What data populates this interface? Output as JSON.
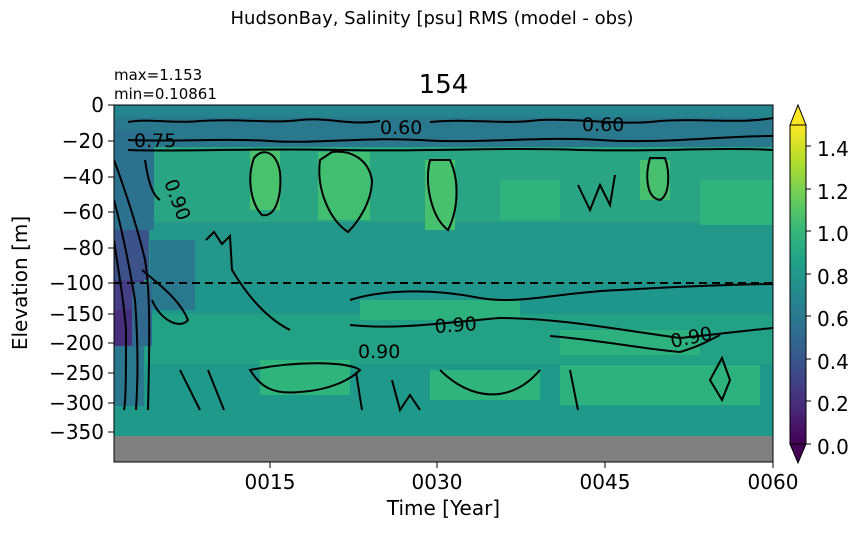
{
  "figure": {
    "suptitle": "HudsonBay, Salinity [psu] RMS (model - obs)",
    "title": "154",
    "stats": {
      "max": "max=1.153",
      "min": "min=0.10861"
    }
  },
  "chart_data": {
    "type": "heatmap",
    "title": "154",
    "xlabel": "Time [Year]",
    "ylabel": "Elevation [m]",
    "x_ticks": [
      "0015",
      "0030",
      "0045",
      "0060"
    ],
    "y_ticks": [
      "0",
      "−20",
      "−40",
      "−60",
      "−80",
      "−100",
      "−150",
      "−200",
      "−250",
      "−300",
      "−350"
    ],
    "colorbar": {
      "ticks": [
        "0.0",
        "0.2",
        "0.4",
        "0.6",
        "0.8",
        "1.0",
        "1.2",
        "1.4"
      ],
      "range": [
        0.0,
        1.5
      ],
      "colormap": "viridis",
      "extend": "both"
    },
    "contour_labels": [
      "0.75",
      "0.90",
      "0.60",
      "0.60",
      "0.90",
      "0.90",
      "0.90"
    ],
    "reference_line_depth": -100,
    "value_range": {
      "max": 1.153,
      "min": 0.10861
    },
    "colors": {
      "viridis": [
        "#440154",
        "#482878",
        "#3e4989",
        "#31688e",
        "#26828e",
        "#1f9e89",
        "#35b779",
        "#6ece58",
        "#b5de2b",
        "#fde725"
      ],
      "no_data": "#808080"
    }
  }
}
